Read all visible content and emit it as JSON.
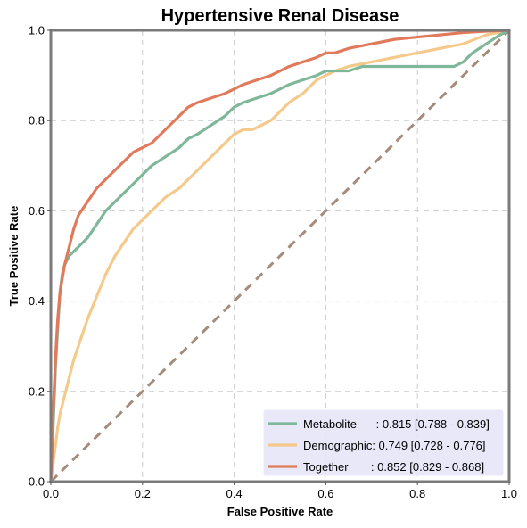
{
  "chart_data": {
    "type": "line",
    "title": "Hypertensive Renal Disease",
    "xlabel": "False Positive Rate",
    "ylabel": "True Positive Rate",
    "xlim": [
      0,
      1
    ],
    "ylim": [
      0,
      1
    ],
    "xticks": [
      "0.0",
      "0.2",
      "0.4",
      "0.6",
      "0.8",
      "1.0"
    ],
    "yticks": [
      "0.0",
      "0.2",
      "0.4",
      "0.6",
      "0.8",
      "1.0"
    ],
    "grid": true,
    "legend_position": "lower-right",
    "series": [
      {
        "name": "Metabolite",
        "legend_label": "Metabolite      : 0.815 [0.788 - 0.839]",
        "color": "#7fb79a",
        "x": [
          0,
          0.005,
          0.01,
          0.015,
          0.02,
          0.025,
          0.03,
          0.04,
          0.05,
          0.06,
          0.08,
          0.1,
          0.12,
          0.14,
          0.16,
          0.18,
          0.2,
          0.22,
          0.25,
          0.28,
          0.3,
          0.32,
          0.35,
          0.38,
          0.4,
          0.42,
          0.45,
          0.48,
          0.5,
          0.52,
          0.55,
          0.58,
          0.6,
          0.62,
          0.65,
          0.68,
          0.7,
          0.75,
          0.8,
          0.85,
          0.88,
          0.9,
          0.92,
          0.95,
          0.98,
          1.0
        ],
        "y": [
          0,
          0.12,
          0.25,
          0.34,
          0.42,
          0.46,
          0.48,
          0.5,
          0.51,
          0.52,
          0.54,
          0.57,
          0.6,
          0.62,
          0.64,
          0.66,
          0.68,
          0.7,
          0.72,
          0.74,
          0.76,
          0.77,
          0.79,
          0.81,
          0.83,
          0.84,
          0.85,
          0.86,
          0.87,
          0.88,
          0.89,
          0.9,
          0.91,
          0.91,
          0.91,
          0.92,
          0.92,
          0.92,
          0.92,
          0.92,
          0.92,
          0.93,
          0.95,
          0.97,
          0.99,
          1.0
        ]
      },
      {
        "name": "Demographic",
        "legend_label": "Demographic: 0.749 [0.728 - 0.776]",
        "color": "#f5c98a",
        "x": [
          0,
          0.005,
          0.01,
          0.015,
          0.02,
          0.03,
          0.04,
          0.05,
          0.06,
          0.07,
          0.08,
          0.1,
          0.12,
          0.14,
          0.16,
          0.18,
          0.2,
          0.22,
          0.25,
          0.28,
          0.3,
          0.32,
          0.34,
          0.36,
          0.38,
          0.4,
          0.42,
          0.44,
          0.46,
          0.48,
          0.5,
          0.52,
          0.55,
          0.58,
          0.6,
          0.62,
          0.65,
          0.7,
          0.75,
          0.8,
          0.85,
          0.9,
          0.95,
          1.0
        ],
        "y": [
          0,
          0.04,
          0.08,
          0.12,
          0.15,
          0.19,
          0.23,
          0.27,
          0.3,
          0.33,
          0.36,
          0.41,
          0.46,
          0.5,
          0.53,
          0.56,
          0.58,
          0.6,
          0.63,
          0.65,
          0.67,
          0.69,
          0.71,
          0.73,
          0.75,
          0.77,
          0.78,
          0.78,
          0.79,
          0.8,
          0.82,
          0.84,
          0.86,
          0.89,
          0.9,
          0.91,
          0.92,
          0.93,
          0.94,
          0.95,
          0.96,
          0.97,
          0.99,
          1.0
        ]
      },
      {
        "name": "Together",
        "legend_label": "Together       : 0.852 [0.829 - 0.868]",
        "color": "#e07a5a",
        "x": [
          0,
          0.005,
          0.01,
          0.015,
          0.02,
          0.025,
          0.03,
          0.04,
          0.05,
          0.06,
          0.08,
          0.1,
          0.12,
          0.14,
          0.16,
          0.18,
          0.2,
          0.22,
          0.24,
          0.26,
          0.28,
          0.3,
          0.32,
          0.35,
          0.38,
          0.4,
          0.42,
          0.45,
          0.48,
          0.5,
          0.52,
          0.55,
          0.58,
          0.6,
          0.62,
          0.65,
          0.7,
          0.75,
          0.8,
          0.85,
          0.9,
          0.95,
          1.0
        ],
        "y": [
          0,
          0.15,
          0.27,
          0.36,
          0.42,
          0.45,
          0.48,
          0.52,
          0.56,
          0.59,
          0.62,
          0.65,
          0.67,
          0.69,
          0.71,
          0.73,
          0.74,
          0.75,
          0.77,
          0.79,
          0.81,
          0.83,
          0.84,
          0.85,
          0.86,
          0.87,
          0.88,
          0.89,
          0.9,
          0.91,
          0.92,
          0.93,
          0.94,
          0.95,
          0.95,
          0.96,
          0.97,
          0.98,
          0.985,
          0.99,
          0.995,
          0.998,
          1.0
        ]
      }
    ],
    "reference_line": {
      "color": "#a48b7a",
      "x": [
        0,
        1
      ],
      "y": [
        0,
        1
      ]
    },
    "colors": {
      "axes": "#7a7a7a",
      "grid": "#cccccc",
      "legend_bg": "#e6e6f7"
    }
  }
}
